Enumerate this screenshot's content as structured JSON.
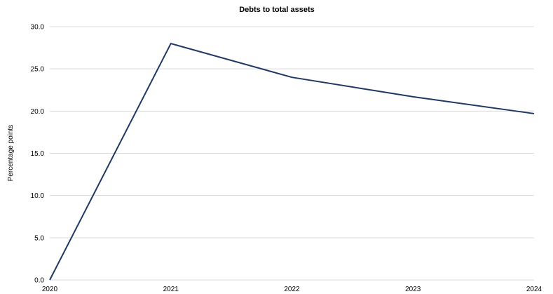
{
  "chart_data": {
    "type": "line",
    "title": "Debts to total assets",
    "ylabel": "Percentage points",
    "xlabel": "",
    "categories": [
      "2020",
      "2021",
      "2022",
      "2023",
      "2024"
    ],
    "series": [
      {
        "values": [
          0.0,
          28.0,
          24.0,
          21.7,
          19.7
        ],
        "color": "#1f3864"
      }
    ],
    "ylim": [
      0,
      30
    ],
    "yticks": [
      "0.0",
      "5.0",
      "10.0",
      "15.0",
      "20.0",
      "25.0",
      "30.0"
    ],
    "grid": true,
    "legend": "none"
  }
}
